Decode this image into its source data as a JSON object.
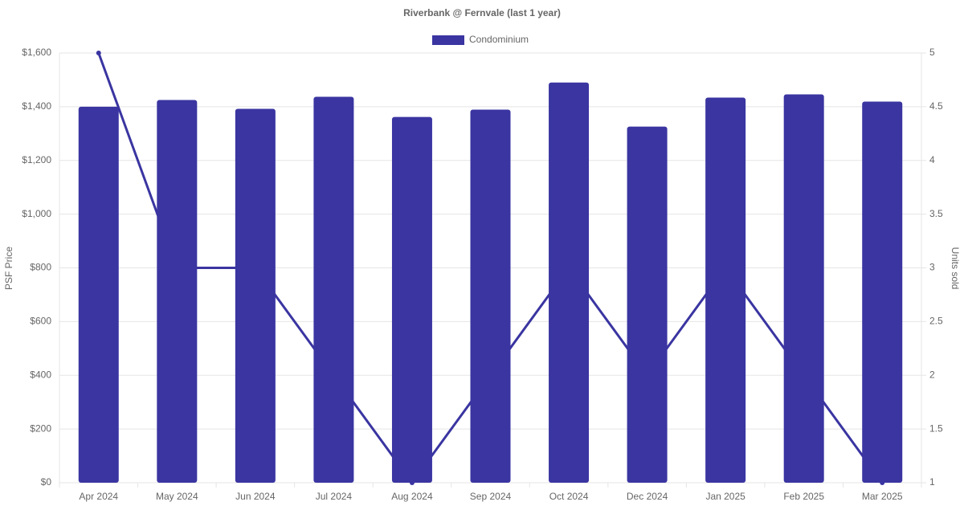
{
  "chart_data": {
    "type": "bar",
    "title": "Riverbank @ Fernvale (last 1 year)",
    "categories": [
      "Apr 2024",
      "May 2024",
      "Jun 2024",
      "Jul 2024",
      "Aug 2024",
      "Sep 2024",
      "Oct 2024",
      "Dec 2024",
      "Jan 2025",
      "Feb 2025",
      "Mar 2025"
    ],
    "series": [
      {
        "name": "Condominium",
        "type": "bar",
        "color": "#3a35a1",
        "values": [
          1400,
          1425,
          1392,
          1437,
          1362,
          1389,
          1490,
          1326,
          1434,
          1446,
          1419
        ]
      },
      {
        "type": "line",
        "axis": "y2",
        "color": "#3a35a1",
        "values": [
          5,
          3,
          3,
          2,
          1,
          2,
          3,
          2,
          3,
          2,
          1
        ]
      }
    ],
    "y_label": "PSF Price",
    "y2_label": "Units sold",
    "ylim": [
      0,
      1600
    ],
    "yticks": [
      {
        "value": 0,
        "label": "$0"
      },
      {
        "value": 200,
        "label": "$200"
      },
      {
        "value": 400,
        "label": "$400"
      },
      {
        "value": 600,
        "label": "$600"
      },
      {
        "value": 800,
        "label": "$800"
      },
      {
        "value": 1000,
        "label": "$1,000"
      },
      {
        "value": 1200,
        "label": "$1,200"
      },
      {
        "value": 1400,
        "label": "$1,400"
      },
      {
        "value": 1600,
        "label": "$1,600"
      }
    ],
    "y2lim": [
      1,
      5
    ],
    "y2ticks": [
      1,
      1.5,
      2,
      2.5,
      3,
      3.5,
      4,
      4.5,
      5
    ],
    "grid": true,
    "legend": "top"
  }
}
